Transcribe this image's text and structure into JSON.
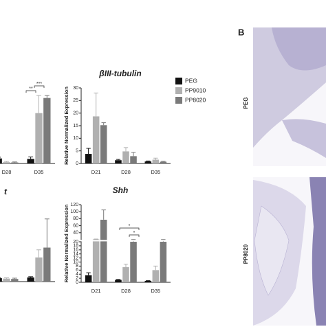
{
  "panel_label": "B",
  "image_labels": [
    "PEG",
    "PP8020"
  ],
  "chart_data": [
    {
      "type": "bar",
      "categories": [
        "D28",
        "D35"
      ],
      "series": [
        {
          "color": "#111111",
          "values": [
            2,
            1.8
          ],
          "errors": [
            0.5,
            0.8
          ]
        },
        {
          "color": "#b0b0b0",
          "values": [
            0.5,
            20
          ],
          "errors": [
            0.3,
            7
          ]
        },
        {
          "color": "#7a7a7a",
          "values": [
            0.4,
            26
          ],
          "errors": [
            0.2,
            1
          ]
        }
      ],
      "ylim": [
        0,
        30
      ],
      "annotations": [
        "***",
        "**"
      ]
    },
    {
      "type": "bar",
      "title": "βIII-tubulin",
      "ylabel": "Relative Normalized Expression",
      "categories": [
        "D21",
        "D28",
        "D35"
      ],
      "series": [
        {
          "name": "PEG",
          "color": "#111111",
          "values": [
            3.8,
            1.3,
            0.8
          ],
          "errors": [
            2.2,
            0.3,
            0.2
          ]
        },
        {
          "name": "PP9010",
          "color": "#b0b0b0",
          "values": [
            18.7,
            4.8,
            1.5
          ],
          "errors": [
            9.3,
            1.5,
            0.6
          ]
        },
        {
          "name": "PP8020",
          "color": "#7a7a7a",
          "values": [
            15.2,
            2.9,
            0.7
          ],
          "errors": [
            1,
            1.5,
            0.2
          ]
        }
      ],
      "ylim": [
        0,
        30
      ],
      "yticks": [
        0,
        5,
        10,
        15,
        20,
        25,
        30
      ]
    },
    {
      "type": "bar",
      "title": "t",
      "categories": [
        null,
        null
      ],
      "series": [
        {
          "color": "#111111",
          "values": [
            0.9,
            1.1
          ],
          "errors": [
            0.2,
            0.2
          ]
        },
        {
          "color": "#b0b0b0",
          "values": [
            0.8,
            6.4
          ],
          "errors": [
            0.2,
            2
          ]
        },
        {
          "color": "#7a7a7a",
          "values": [
            0.7,
            9
          ],
          "errors": [
            0.2,
            7.6
          ]
        }
      ],
      "ylim": [
        0,
        20
      ]
    },
    {
      "type": "bar",
      "title": "Shh",
      "ylabel": "Relative Normalized Expression",
      "categories": [
        "D21",
        "D28",
        "D35"
      ],
      "series": [
        {
          "color": "#111111",
          "values": [
            3.5,
            1.2,
            0.7
          ],
          "errors": [
            1.2,
            0.2,
            0.1
          ]
        },
        {
          "color": "#b0b0b0",
          "values": [
            21,
            7.5,
            6
          ],
          "errors": [
            1,
            1.5,
            2
          ]
        },
        {
          "color": "#7a7a7a",
          "values": [
            77,
            20,
            20
          ],
          "errors": [
            28,
            0.5,
            0.5
          ]
        }
      ],
      "ylim": [
        0,
        120
      ],
      "ybreak": 20,
      "yticks": [
        0,
        2,
        4,
        6,
        8,
        10,
        12,
        14,
        16,
        18,
        20,
        40,
        60,
        80,
        100,
        120
      ],
      "annotations": [
        "*",
        "*"
      ]
    }
  ]
}
